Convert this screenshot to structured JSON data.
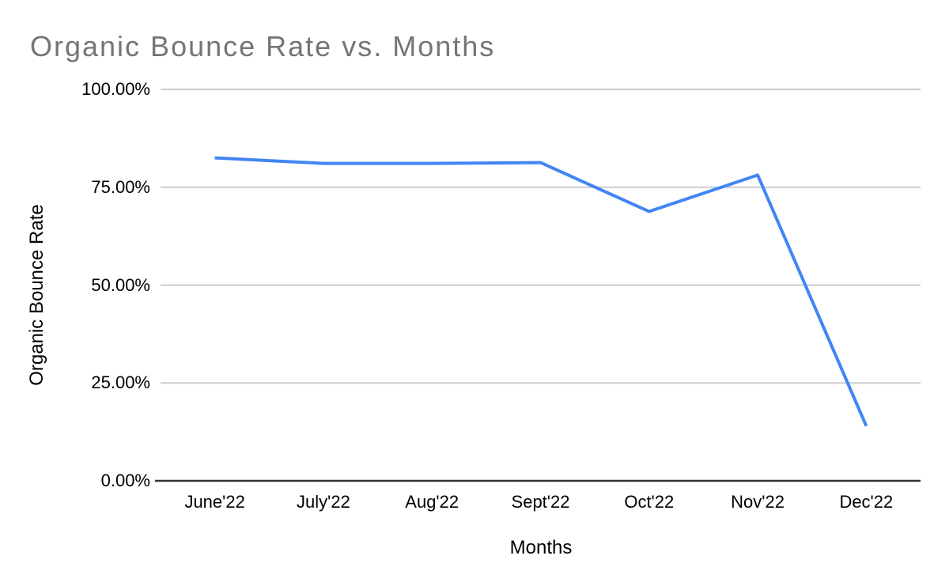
{
  "chart_data": {
    "type": "line",
    "title": "Organic Bounce Rate vs. Months",
    "xlabel": "Months",
    "ylabel": "Organic Bounce Rate",
    "categories": [
      "June'22",
      "July'22",
      "Aug'22",
      "Sept'22",
      "Oct'22",
      "Nov'22",
      "Dec'22"
    ],
    "values": [
      82.5,
      81.1,
      81.1,
      81.3,
      68.8,
      78.1,
      14.0
    ],
    "ylim": [
      0,
      100
    ],
    "y_ticks": [
      {
        "value": 0,
        "label": "0.00%"
      },
      {
        "value": 25,
        "label": "25.00%"
      },
      {
        "value": 50,
        "label": "50.00%"
      },
      {
        "value": 75,
        "label": "75.00%"
      },
      {
        "value": 100,
        "label": "100.00%"
      }
    ],
    "grid": true,
    "legend": "none",
    "colors": {
      "line": "#4285f4",
      "gridline": "#cccccc",
      "axis_line": "#333333",
      "title": "#757575",
      "labels": "#000000",
      "background": "#ffffff"
    }
  }
}
